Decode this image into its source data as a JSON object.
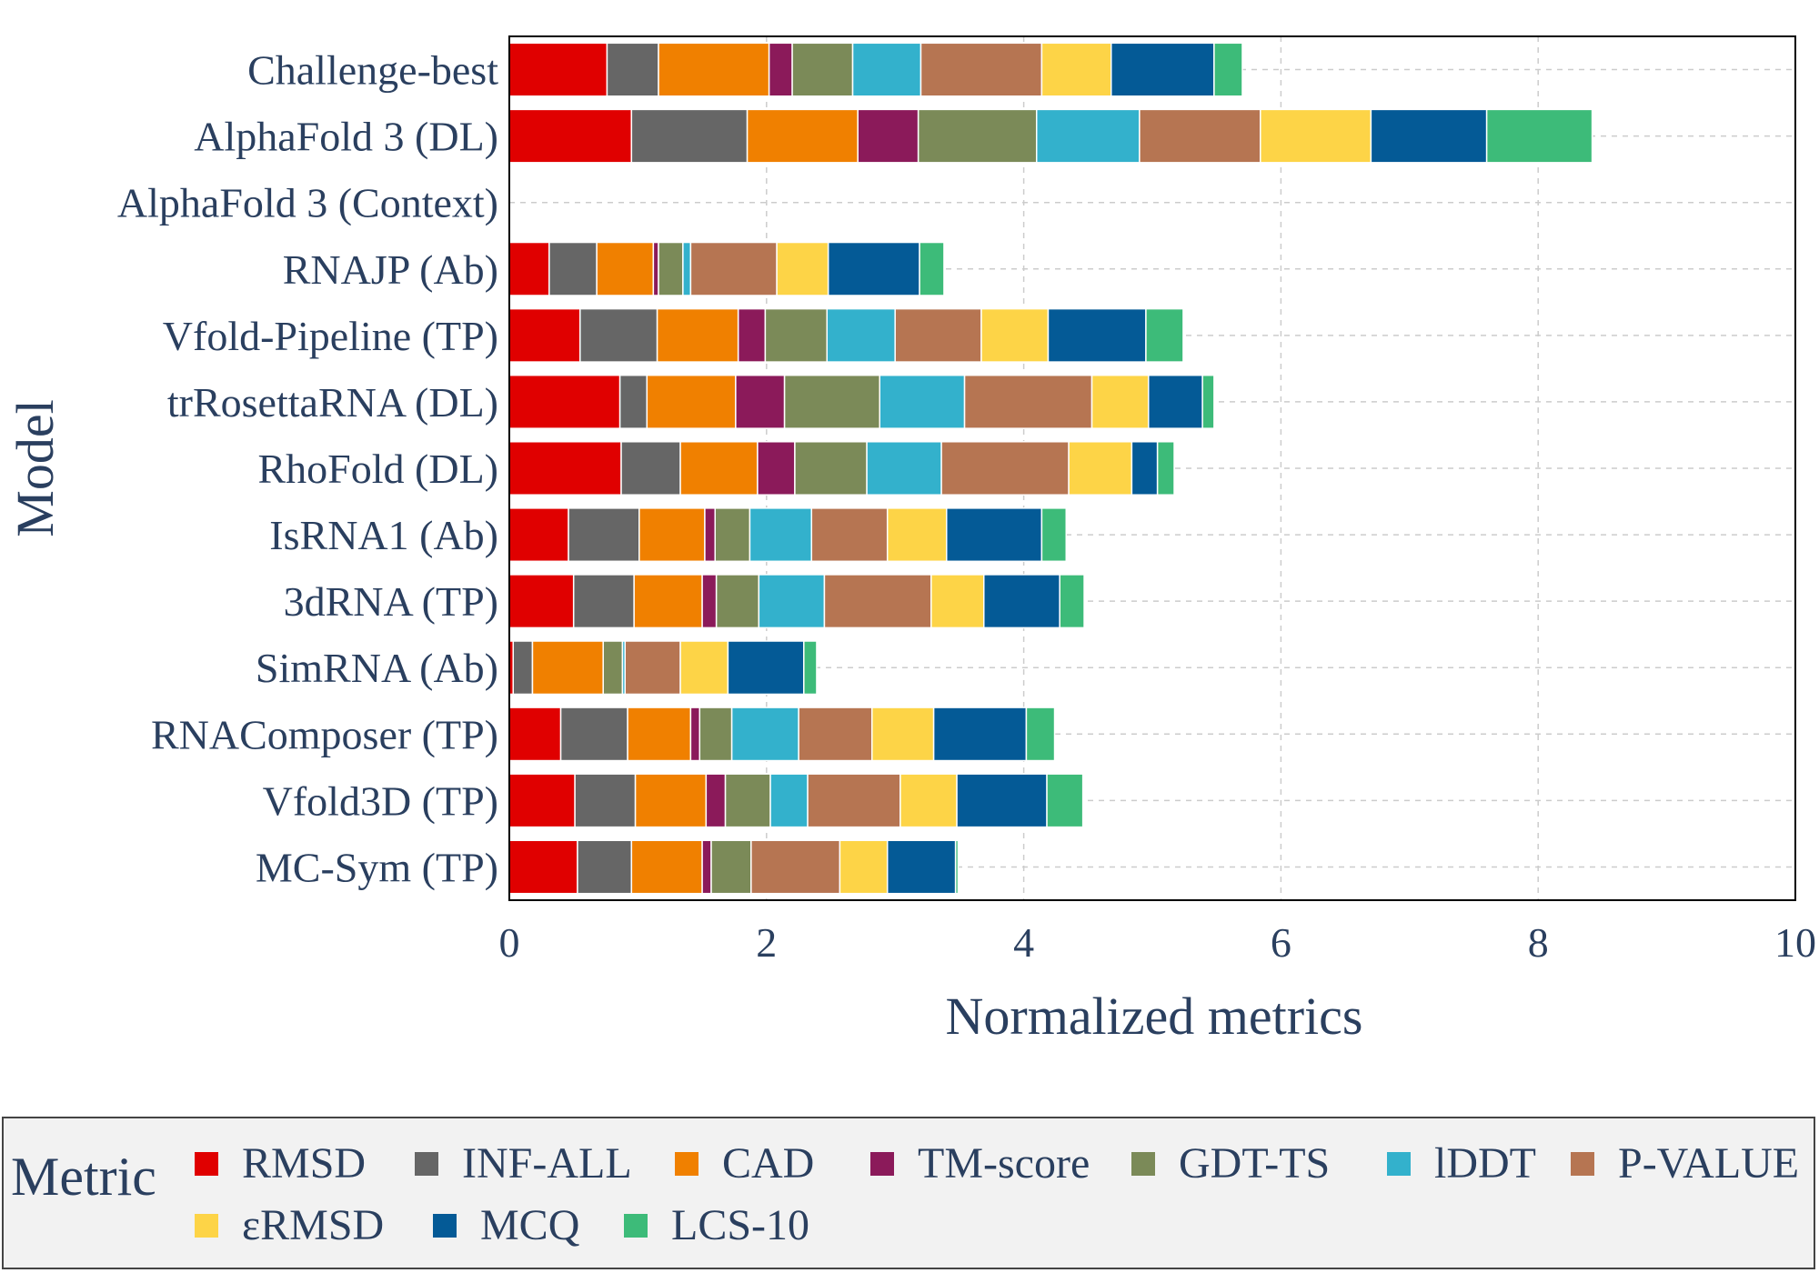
{
  "chart_data": {
    "type": "bar",
    "orientation": "horizontal",
    "stacked": true,
    "xlabel": "Normalized metrics",
    "ylabel": "Model",
    "xlim": [
      0,
      10
    ],
    "x_ticks": [
      "0",
      "2",
      "4",
      "6",
      "8",
      "10"
    ],
    "grid": true,
    "legend_position": "bottom",
    "legend_title": "Metric",
    "categories": [
      "Challenge-best",
      "AlphaFold 3 (DL)",
      "AlphaFold 3 (Context)",
      "RNAJP (Ab)",
      "Vfold-Pipeline (TP)",
      "trRosettaRNA (DL)",
      "RhoFold (DL)",
      "IsRNA1 (Ab)",
      "3dRNA (TP)",
      "SimRNA (Ab)",
      "RNAComposer (TP)",
      "Vfold3D (TP)",
      "MC-Sym (TP)"
    ],
    "series": [
      {
        "name": "RMSD",
        "color": "#e00000",
        "values": [
          0.76,
          0.95,
          0,
          0.31,
          0.55,
          0.86,
          0.87,
          0.46,
          0.5,
          0.03,
          0.4,
          0.51,
          0.53
        ]
      },
      {
        "name": "INF-ALL",
        "color": "#666666",
        "values": [
          0.4,
          0.9,
          0,
          0.37,
          0.6,
          0.21,
          0.46,
          0.55,
          0.47,
          0.15,
          0.52,
          0.47,
          0.42
        ]
      },
      {
        "name": "CAD",
        "color": "#f08000",
        "values": [
          0.86,
          0.86,
          0,
          0.44,
          0.63,
          0.69,
          0.6,
          0.51,
          0.53,
          0.55,
          0.49,
          0.55,
          0.55
        ]
      },
      {
        "name": "TM-score",
        "color": "#8b1a5a",
        "values": [
          0.18,
          0.47,
          0,
          0.04,
          0.21,
          0.38,
          0.29,
          0.08,
          0.11,
          0.0,
          0.07,
          0.15,
          0.07
        ]
      },
      {
        "name": "GDT-TS",
        "color": "#7b8a58",
        "values": [
          0.47,
          0.92,
          0,
          0.19,
          0.48,
          0.74,
          0.56,
          0.27,
          0.33,
          0.15,
          0.25,
          0.35,
          0.31
        ]
      },
      {
        "name": "lDDT",
        "color": "#33b1cc",
        "values": [
          0.53,
          0.8,
          0,
          0.06,
          0.53,
          0.66,
          0.58,
          0.48,
          0.51,
          0.02,
          0.52,
          0.29,
          0.0
        ]
      },
      {
        "name": "P-VALUE",
        "color": "#b67552",
        "values": [
          0.94,
          0.94,
          0,
          0.67,
          0.67,
          0.99,
          0.99,
          0.59,
          0.83,
          0.43,
          0.57,
          0.72,
          0.69
        ]
      },
      {
        "name": "εRMSD",
        "color": "#fdd447",
        "values": [
          0.54,
          0.86,
          0,
          0.4,
          0.52,
          0.44,
          0.49,
          0.46,
          0.41,
          0.37,
          0.48,
          0.44,
          0.37
        ]
      },
      {
        "name": "MCQ",
        "color": "#045a96",
        "values": [
          0.8,
          0.9,
          0,
          0.71,
          0.76,
          0.42,
          0.2,
          0.74,
          0.59,
          0.59,
          0.72,
          0.7,
          0.53
        ]
      },
      {
        "name": "LCS-10",
        "color": "#3dbb79",
        "values": [
          0.22,
          0.82,
          0,
          0.19,
          0.29,
          0.09,
          0.13,
          0.19,
          0.19,
          0.1,
          0.22,
          0.28,
          0.02
        ]
      }
    ]
  }
}
